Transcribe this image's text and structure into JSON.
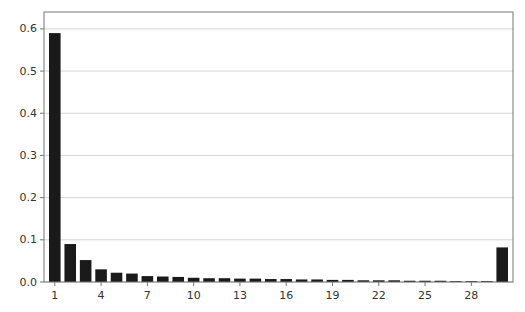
{
  "chart_data": {
    "type": "bar",
    "x": [
      1,
      2,
      3,
      4,
      5,
      6,
      7,
      8,
      9,
      10,
      11,
      12,
      13,
      14,
      15,
      16,
      17,
      18,
      19,
      20,
      21,
      22,
      23,
      24,
      25,
      26,
      27,
      28,
      29,
      30
    ],
    "values": [
      0.59,
      0.09,
      0.052,
      0.03,
      0.022,
      0.02,
      0.014,
      0.013,
      0.012,
      0.01,
      0.009,
      0.009,
      0.008,
      0.008,
      0.007,
      0.007,
      0.006,
      0.006,
      0.005,
      0.005,
      0.004,
      0.004,
      0.004,
      0.003,
      0.003,
      0.003,
      0.002,
      0.002,
      0.002,
      0.082
    ],
    "color": "#1a1a1a",
    "xlim": [
      0.3,
      30.7
    ],
    "xticks": [
      1,
      4,
      7,
      10,
      13,
      16,
      19,
      22,
      25,
      28
    ],
    "ylim": [
      0,
      0.64
    ],
    "yticks": [
      {
        "value": 0.0,
        "label": "0.0"
      },
      0.1,
      0.2,
      0.3,
      0.4,
      0.5,
      0.6
    ],
    "grid": true
  }
}
